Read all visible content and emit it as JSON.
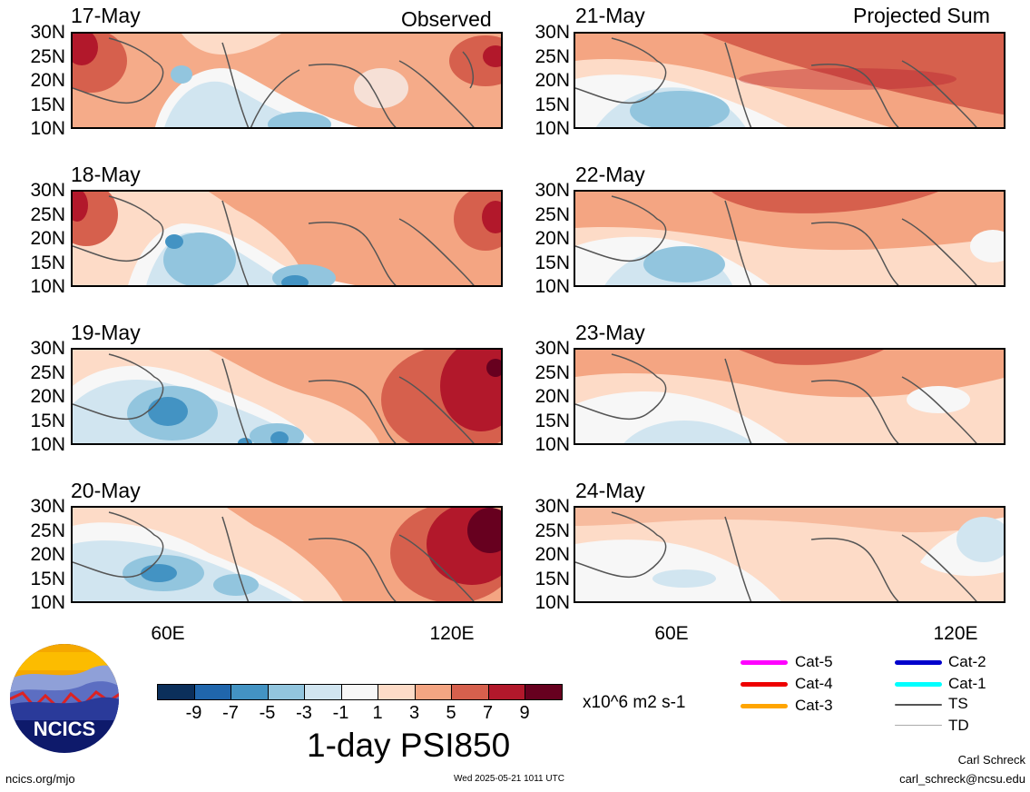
{
  "header": {
    "observed_label": "Observed",
    "projected_label": "Projected Sum"
  },
  "panels": [
    {
      "date": "17-May"
    },
    {
      "date": "18-May"
    },
    {
      "date": "19-May"
    },
    {
      "date": "20-May"
    },
    {
      "date": "21-May"
    },
    {
      "date": "22-May"
    },
    {
      "date": "23-May"
    },
    {
      "date": "24-May"
    }
  ],
  "axes": {
    "lat_labels": [
      "30N",
      "25N",
      "20N",
      "15N",
      "10N"
    ],
    "lon_labels": [
      "60E",
      "120E"
    ]
  },
  "colorbar": {
    "tick_labels": [
      "-9",
      "-7",
      "-5",
      "-3",
      "-1",
      "1",
      "3",
      "5",
      "7",
      "9"
    ],
    "colors": [
      "#0b2f5b",
      "#2066ac",
      "#4393c3",
      "#92c5de",
      "#d1e5f0",
      "#f7f7f7",
      "#fddbc7",
      "#f4a582",
      "#d6604d",
      "#b2182b",
      "#67001f"
    ],
    "units": "x10^6 m2 s-1",
    "title": "1-day PSI850"
  },
  "legend": {
    "items": [
      {
        "label": "Cat-5",
        "color": "#ff00ff"
      },
      {
        "label": "Cat-4",
        "color": "#ee0000"
      },
      {
        "label": "Cat-3",
        "color": "#ffa500"
      },
      {
        "label": "Cat-2",
        "color": "#0000cc"
      },
      {
        "label": "Cat-1",
        "color": "#00ffff"
      },
      {
        "label": "TS",
        "color": "#555555"
      },
      {
        "label": "TD",
        "color": "#aaaaaa"
      }
    ]
  },
  "footer": {
    "logo_text": "NCICS",
    "site": "ncics.org/mjo",
    "timestamp": "Wed 2025-05-21 1011 UTC",
    "author": "Carl Schreck",
    "email": "carl_schreck@ncsu.edu"
  }
}
